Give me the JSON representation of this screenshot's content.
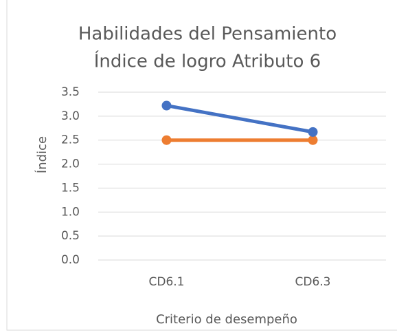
{
  "chart_data": {
    "type": "line",
    "title": [
      "Habilidades del Pensamiento",
      "Índice de logro Atributo 6"
    ],
    "x_label": "Criterio de desempeño",
    "y_label": "Índice",
    "categories": [
      "CD6.1",
      "CD6.3"
    ],
    "series": [
      {
        "color": "#4472c4",
        "values": [
          3.22,
          2.67
        ]
      },
      {
        "color": "#ed7d31",
        "values": [
          2.5,
          2.5
        ]
      }
    ],
    "ylim": [
      0,
      3.5
    ],
    "yticks": [
      {
        "value": 0,
        "label": "0.0"
      },
      0.5,
      {
        "value": 1,
        "label": "1.0"
      },
      1.5,
      {
        "value": 2,
        "label": "2.0"
      },
      2.5,
      {
        "value": 3,
        "label": "3.0"
      },
      3.5
    ],
    "grid": true
  }
}
